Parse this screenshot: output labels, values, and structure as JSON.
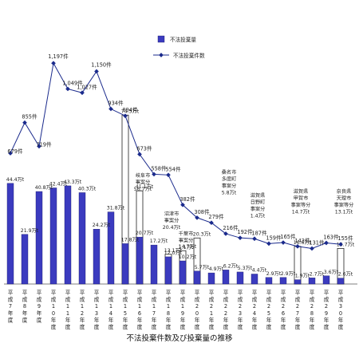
{
  "chart_data": {
    "type": "bar",
    "title": "不法投棄件数及び投棄量の推移",
    "categories": [
      "平成7年度",
      "平成8年度",
      "平成9年度",
      "平成10年度",
      "平成11年度",
      "平成12年度",
      "平成13年度",
      "平成14年度",
      "平成15年度",
      "平成16年度",
      "平成17年度",
      "平成18年度",
      "平成19年度",
      "平成20年度",
      "平成21年度",
      "平成22年度",
      "平成23年度",
      "平成24年度",
      "平成25年度",
      "平成26年度",
      "平成27年度",
      "平成28年度",
      "平成29年度",
      "平成30年度"
    ],
    "series": [
      {
        "name": "不法投棄量",
        "type": "bar",
        "unit": "万t",
        "values": [
          44.4,
          21.9,
          40.8,
          42.4,
          43.3,
          40.3,
          24.2,
          31.8,
          17.8,
          20.7,
          17.2,
          12.0,
          10.2,
          5.7,
          4.9,
          6.2,
          5.3,
          4.4,
          2.9,
          2.9,
          1.9,
          2.7,
          3.6,
          2.6
        ],
        "labels": [
          "44.4万t",
          "21.9万t",
          "40.8万t",
          "42.4万t",
          "43.3万t",
          "40.3万t",
          "24.2万t",
          "31.8万t",
          "17.8万t",
          "20.7万t",
          "17.2万t",
          "12.0万t",
          "10.2万t",
          "5.7万t",
          "4.9万t",
          "6.2万t",
          "5.3万t",
          "4.4万t",
          "2.9万t",
          "2.9万t",
          "1.9万t",
          "2.7万t",
          "3.6万t",
          "2.6万t"
        ],
        "special_totals": [
          null,
          null,
          null,
          null,
          null,
          null,
          null,
          null,
          74.5,
          41.1,
          null,
          13.1,
          14.7,
          20.3,
          null,
          null,
          null,
          null,
          null,
          null,
          16.6,
          null,
          null,
          15.7
        ],
        "special_labels": [
          "",
          "",
          "",
          "",
          "",
          "",
          "",
          "",
          "74.5万t",
          "41.1万t",
          "",
          "13.1万t",
          "14.7万t",
          "20.3万t",
          "",
          "",
          "",
          "",
          "",
          "",
          "16.6万t",
          "",
          "",
          "15.7万t"
        ],
        "color": "#3b3bbf"
      },
      {
        "name": "不法投棄件数",
        "type": "line",
        "unit": "件",
        "values": [
          679,
          855,
          719,
          1197,
          1049,
          1027,
          1150,
          934,
          894,
          673,
          558,
          554,
          382,
          308,
          279,
          216,
          192,
          187,
          159,
          165,
          143,
          131,
          163,
          155
        ],
        "labels": [
          "679件",
          "855件",
          "719件",
          "1,197件",
          "1,049件",
          "1,027件",
          "1,150件",
          "934件",
          "894件",
          "673件",
          "558件",
          "554件",
          "382件",
          "308件",
          "279件",
          "216件",
          "192件",
          "187件",
          "159件",
          "165件",
          "143件",
          "131件",
          "163件",
          "155件"
        ],
        "color": "#1a2a8c"
      }
    ],
    "annotations": [
      {
        "index": 9,
        "lines": [
          "岐阜市",
          "事案分",
          "56.7万t"
        ]
      },
      {
        "index": 11,
        "lines": [
          "沼津市",
          "事案分",
          "20.4万t"
        ]
      },
      {
        "index": 12,
        "lines": [
          "千葉市",
          "事案分",
          "1.1万t"
        ]
      },
      {
        "index": 15,
        "lines": [
          "桑名市",
          "多度町",
          "事案分",
          "5.8万t"
        ]
      },
      {
        "index": 17,
        "lines": [
          "滋賀県",
          "日野町",
          "事案分",
          "1.4万t"
        ]
      },
      {
        "index": 20,
        "lines": [
          "滋賀県",
          "甲賀市",
          "事案等分",
          "14.7万t"
        ]
      },
      {
        "index": 23,
        "lines": [
          "奈良県",
          "天理市",
          "事案等分",
          "13.1万t"
        ]
      }
    ],
    "legend": {
      "position": "top-center",
      "items": [
        "不法投棄量",
        "不法投棄件数"
      ]
    },
    "ylim_bars": [
      0,
      95
    ],
    "ylim_line": [
      0,
      1400
    ],
    "grid": false
  }
}
